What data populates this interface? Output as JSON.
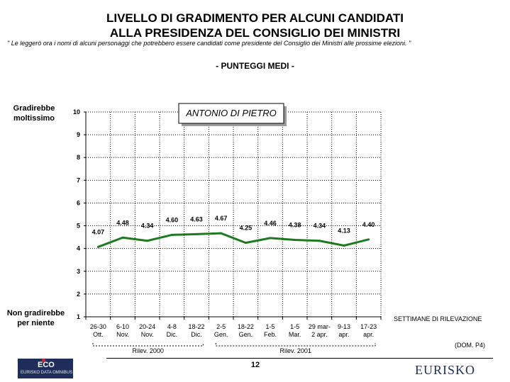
{
  "header": {
    "title_line1": "LIVELLO DI GRADIMENTO PER ALCUNI CANDIDATI",
    "title_line2": "ALLA PRESIDENZA DEL CONSIGLIO DEI MINISTRI",
    "note": "\" Le leggerò ora i nomi di alcuni personaggi che potrebbero essere candidati come presidente del Consiglio dei Ministri alle prossime elezioni. \"",
    "subtitle": "- PUNTEGGI MEDI -"
  },
  "y_top_label": [
    "Gradirebbe",
    "moltissimo"
  ],
  "y_bottom_label": [
    "Non gradirebbe",
    "per niente"
  ],
  "chart_data": {
    "type": "line",
    "title": "ANTONIO DI PIETRO",
    "x": [
      [
        "26-30",
        "Ott."
      ],
      [
        "6-10",
        "Nov."
      ],
      [
        "20-24",
        "Nov."
      ],
      [
        "4-8",
        "Dic."
      ],
      [
        "18-22",
        "Dic."
      ],
      [
        "2-5",
        "Gen."
      ],
      [
        "18-22",
        "Gen."
      ],
      [
        "1-5",
        "Feb."
      ],
      [
        "1-5",
        "Mar."
      ],
      [
        "29 mar-",
        "2 apr."
      ],
      [
        "9-13",
        "apr."
      ],
      [
        "17-23",
        "apr."
      ]
    ],
    "series": [
      {
        "values": [
          4.07,
          4.48,
          4.34,
          4.6,
          4.63,
          4.67,
          4.25,
          4.46,
          4.38,
          4.34,
          4.13,
          4.4
        ],
        "labels": [
          "4.07",
          "4.48",
          "4.34",
          "4.60",
          "4.63",
          "4.67",
          "4.25",
          "4.46",
          "4.38",
          "4.34",
          "4.13",
          "4.40"
        ],
        "color": "#1f7a1f"
      }
    ],
    "ylim": [
      1,
      10
    ],
    "yticks": [
      "1",
      "2",
      "3",
      "4",
      "5",
      "6",
      "7",
      "8",
      "9",
      "10"
    ],
    "grid": true,
    "xlabel": "SETTIMANE DI RILEVAZIONE",
    "groups": [
      {
        "label": "Rilev. 2000",
        "from": 0,
        "to": 4
      },
      {
        "label": "Rilev. 2001",
        "from": 5,
        "to": 11
      }
    ]
  },
  "source_note": "(DOM. P4)",
  "footer": {
    "page": "12",
    "logo_left": "ECO",
    "logo_left_sub": "EURISKO DATA OMNIBUS",
    "logo_right": "EURISKO"
  }
}
